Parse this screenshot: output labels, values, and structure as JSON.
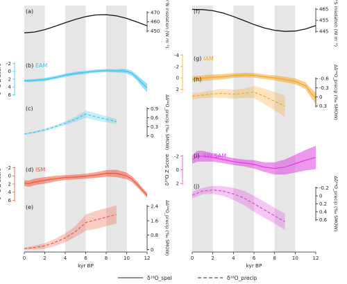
{
  "chart_data": [
    {
      "type": "line",
      "panel": "(a)",
      "series": [
        {
          "name": "",
          "x": [
            0,
            1,
            2,
            3,
            4,
            5,
            6,
            7,
            8,
            9,
            10,
            11,
            12
          ],
          "values": [
            448,
            448.9,
            451.5,
            455.1,
            459,
            462.6,
            465.6,
            467.4,
            467.7,
            466.4,
            463.6,
            459.8,
            455.6
          ]
        }
      ],
      "ylabel": "30°N insolation (W m⁻²)",
      "yticks": [
        450,
        460,
        470
      ],
      "ylim": [
        446,
        476
      ],
      "xlim": [
        0,
        12
      ]
    },
    {
      "type": "area",
      "panel": "(b)",
      "label": "EAM",
      "color": "#3ec6ee",
      "series": [
        {
          "name": "",
          "x": [
            0,
            0.5,
            1,
            2,
            3,
            4,
            5,
            6,
            7,
            8,
            9,
            9.5,
            10,
            10.5,
            11,
            11.5,
            12
          ],
          "values": [
            2.4,
            2.4,
            2.3,
            2.1,
            1.6,
            1.0,
            0.55,
            0.25,
            -0.05,
            -0.2,
            -0.1,
            -0.15,
            0.0,
            0.5,
            1.6,
            3.0,
            4.2
          ],
          "band": [
            0.3,
            0.35,
            0.35,
            0.4,
            0.4,
            0.4,
            0.4,
            0.4,
            0.4,
            0.4,
            0.4,
            0.5,
            0.55,
            0.6,
            0.7,
            0.9,
            1.1
          ]
        }
      ],
      "ylabel": "δ¹⁸O Z Score",
      "yticks": [
        -2,
        0,
        2,
        4,
        6
      ],
      "ylim": [
        -2.6,
        6.6
      ],
      "inverted": true,
      "xlim": [
        0,
        12
      ]
    },
    {
      "type": "line",
      "panel": "(c)",
      "color": "#3ec6ee",
      "series": [
        {
          "name": "",
          "x": [
            0,
            1,
            2,
            3,
            4,
            5,
            6,
            7,
            8,
            9
          ],
          "values": [
            0.06,
            0.12,
            0.2,
            0.3,
            0.42,
            0.55,
            0.72,
            0.63,
            0.55,
            0.48
          ],
          "band": [
            0.02,
            0.03,
            0.04,
            0.05,
            0.06,
            0.08,
            0.12,
            0.12,
            0.1,
            0.08
          ]
        }
      ],
      "ylabel": "Δδ¹⁸O_precip (‰ SMOW)",
      "yticks": [
        0.0,
        0.3,
        0.6,
        0.9
      ],
      "ylim": [
        -0.1,
        1.05
      ],
      "xlim": [
        0,
        12
      ]
    },
    {
      "type": "area",
      "panel": "(d)",
      "label": "ISM",
      "color": "#f2583e",
      "series": [
        {
          "name": "",
          "x": [
            0,
            0.5,
            1,
            2,
            3,
            4,
            5,
            6,
            7,
            8,
            9,
            10,
            10.5,
            11,
            11.5,
            12
          ],
          "values": [
            1.8,
            1.9,
            1.5,
            1.1,
            0.7,
            0.4,
            0.3,
            0.1,
            -0.2,
            -0.6,
            -0.6,
            0.0,
            0.8,
            2.0,
            3.4,
            4.8
          ],
          "band": [
            0.7,
            0.8,
            0.8,
            0.8,
            0.7,
            0.6,
            0.6,
            0.6,
            0.7,
            0.8,
            0.9,
            0.8,
            0.7,
            0.7,
            0.6,
            0.6
          ]
        }
      ],
      "ylabel": "δ¹⁸O Z Score",
      "yticks": [
        -2,
        0,
        2,
        4,
        6
      ],
      "ylim": [
        -2.6,
        6.6
      ],
      "inverted": true,
      "xlim": [
        0,
        12
      ]
    },
    {
      "type": "line",
      "panel": "(e)",
      "color": "#f2583e",
      "series": [
        {
          "name": "",
          "x": [
            0,
            1,
            2,
            3,
            4,
            5,
            6,
            7,
            8,
            9
          ],
          "values": [
            0.05,
            0.12,
            0.2,
            0.4,
            0.65,
            1.0,
            1.5,
            1.65,
            1.8,
            1.95
          ],
          "band": [
            0.05,
            0.1,
            0.15,
            0.2,
            0.25,
            0.3,
            0.45,
            0.5,
            0.5,
            0.5
          ]
        }
      ],
      "ylabel": "Δδ¹⁸O_precip (‰ SMOW)",
      "yticks": [
        0.0,
        0.8,
        1.6,
        2.4
      ],
      "ylim": [
        -0.1,
        2.6
      ],
      "xlim": [
        0,
        12
      ]
    },
    {
      "type": "line",
      "panel": "(f)",
      "series": [
        {
          "name": "",
          "x": [
            0,
            1,
            2,
            3,
            4,
            5,
            6,
            7,
            8,
            9,
            10,
            11,
            12
          ],
          "values": [
            464.8,
            464.6,
            463.6,
            461.5,
            458.4,
            454.8,
            451.2,
            448.1,
            446,
            445,
            445.3,
            447.2,
            450.2
          ]
        }
      ],
      "ylabel": "20°S insolation (W m⁻²)",
      "yticks": [
        445,
        455,
        465
      ],
      "ylim": [
        442,
        467
      ],
      "xlim": [
        0,
        12
      ]
    },
    {
      "type": "area",
      "panel": "(g)",
      "label": "IAM",
      "color": "#f4a62a",
      "series": [
        {
          "name": "",
          "x": [
            0,
            1,
            2,
            3,
            4,
            5,
            6,
            7,
            8,
            9,
            10,
            11,
            11.5,
            12
          ],
          "values": [
            0.2,
            0.05,
            -0.1,
            -0.2,
            -0.4,
            -0.5,
            -0.45,
            -0.2,
            0.0,
            0.3,
            0.6,
            1.4,
            2.6,
            3.6
          ],
          "band": [
            0.5,
            0.5,
            0.5,
            0.45,
            0.4,
            0.4,
            0.4,
            0.4,
            0.45,
            0.5,
            0.5,
            0.6,
            0.8,
            1.0
          ]
        }
      ],
      "ylabel": "",
      "yticks": [
        -4,
        -2,
        0,
        2
      ],
      "ylim": [
        -4.2,
        2.2
      ],
      "inverted": true,
      "xlim": [
        0,
        12
      ]
    },
    {
      "type": "line",
      "panel": "(h)",
      "color": "#f4a62a",
      "series": [
        {
          "name": "",
          "x": [
            0,
            1,
            2,
            3,
            4,
            5,
            6,
            7,
            8,
            9
          ],
          "values": [
            -0.02,
            -0.06,
            -0.1,
            -0.12,
            -0.09,
            -0.12,
            -0.16,
            -0.02,
            0.14,
            0.3
          ],
          "band": [
            0.1,
            0.1,
            0.12,
            0.15,
            0.15,
            0.15,
            0.2,
            0.25,
            0.3,
            0.35
          ]
        }
      ],
      "ylabel": "Δδ¹⁸O_precip (‰ SMOW)",
      "yticks": [
        0.3,
        0.0,
        -0.3,
        -0.6
      ],
      "ylim": [
        -0.72,
        0.35
      ],
      "inverted": true,
      "xlim": [
        0,
        12
      ]
    },
    {
      "type": "area",
      "panel": "(i)",
      "label": "SW-SAM",
      "color": "#dd44dd",
      "series": [
        {
          "name": "",
          "x": [
            0,
            0.5,
            1,
            2,
            3,
            4,
            5,
            6,
            7,
            8,
            9,
            10,
            11,
            12
          ],
          "values": [
            -1.5,
            -2.0,
            -2.0,
            -1.8,
            -1.5,
            -1.2,
            -1.0,
            -0.8,
            -0.4,
            -0.2,
            -0.4,
            -0.9,
            -1.4,
            -1.8
          ],
          "band": [
            0.6,
            0.8,
            0.8,
            0.6,
            0.5,
            0.5,
            0.5,
            0.6,
            0.7,
            0.9,
            1.1,
            1.3,
            1.5,
            1.7
          ]
        }
      ],
      "ylabel": "δ¹⁸O Z Score",
      "yticks": [
        -2,
        0,
        2
      ],
      "ylim": [
        -2.7,
        3.1
      ],
      "inverted": true,
      "xlim": [
        0,
        12
      ]
    },
    {
      "type": "line",
      "panel": "(j)",
      "color": "#dd44dd",
      "series": [
        {
          "name": "",
          "x": [
            0,
            1,
            2,
            3,
            4,
            5,
            6,
            7,
            8,
            9
          ],
          "values": [
            -0.02,
            -0.12,
            -0.15,
            -0.12,
            -0.05,
            0.05,
            0.2,
            0.35,
            0.5,
            0.65
          ],
          "band": [
            0.08,
            0.08,
            0.1,
            0.12,
            0.15,
            0.18,
            0.2,
            0.2,
            0.2,
            0.2
          ]
        }
      ],
      "ylabel": "Δδ¹⁸O_precip (‰ SMOW)",
      "yticks": [
        -0.2,
        0.0,
        0.2,
        0.4,
        0.6
      ],
      "ylim": [
        -0.35,
        0.75
      ],
      "inverted": true,
      "xlim": [
        0,
        12
      ]
    }
  ],
  "shaded_intervals": [
    [
      0,
      2
    ],
    [
      4,
      6
    ],
    [
      8,
      10
    ]
  ],
  "xaxis": {
    "label": "kyr BP",
    "ticks": [
      0,
      2,
      4,
      6,
      8,
      10,
      12
    ]
  },
  "legend": [
    {
      "label": "δ¹⁸O_spel",
      "style": "solid"
    },
    {
      "label": "δ¹⁸O_precip",
      "style": "dashed"
    }
  ]
}
